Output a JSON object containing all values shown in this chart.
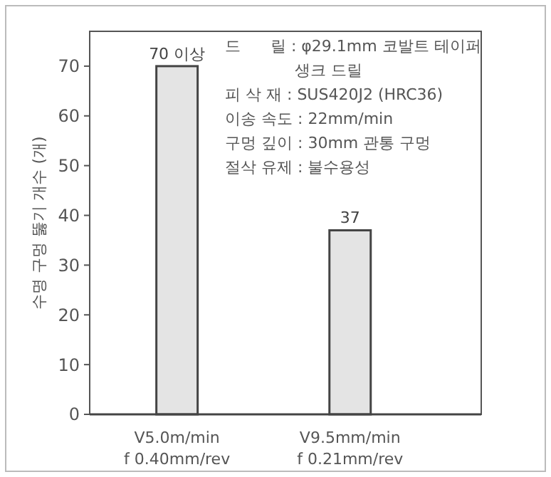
{
  "chart_data": {
    "type": "bar",
    "ylabel": "수명 구멍 뚫기 개수 (개)",
    "categories": [
      "V5.0m/min\nf 0.40mm/rev",
      "V9.5mm/min\nf 0.21mm/rev"
    ],
    "values": [
      70,
      37
    ],
    "value_labels": [
      "70 이상",
      "37"
    ],
    "color": "#e4e4e4",
    "ylim": [
      0,
      77
    ],
    "yticks": [
      0,
      10,
      20,
      30,
      40,
      50,
      60,
      70
    ],
    "grid": false,
    "annotations": [
      "드      릴 : φ29.1mm 코발트 테이퍼",
      "              생크 드릴",
      "피 삭 재 : SUS420J2 (HRC36)",
      "이송 속도 : 22mm/min",
      "구멍 깊이 : 30mm 관통 구멍",
      "절삭 유제 : 불수용성"
    ]
  }
}
